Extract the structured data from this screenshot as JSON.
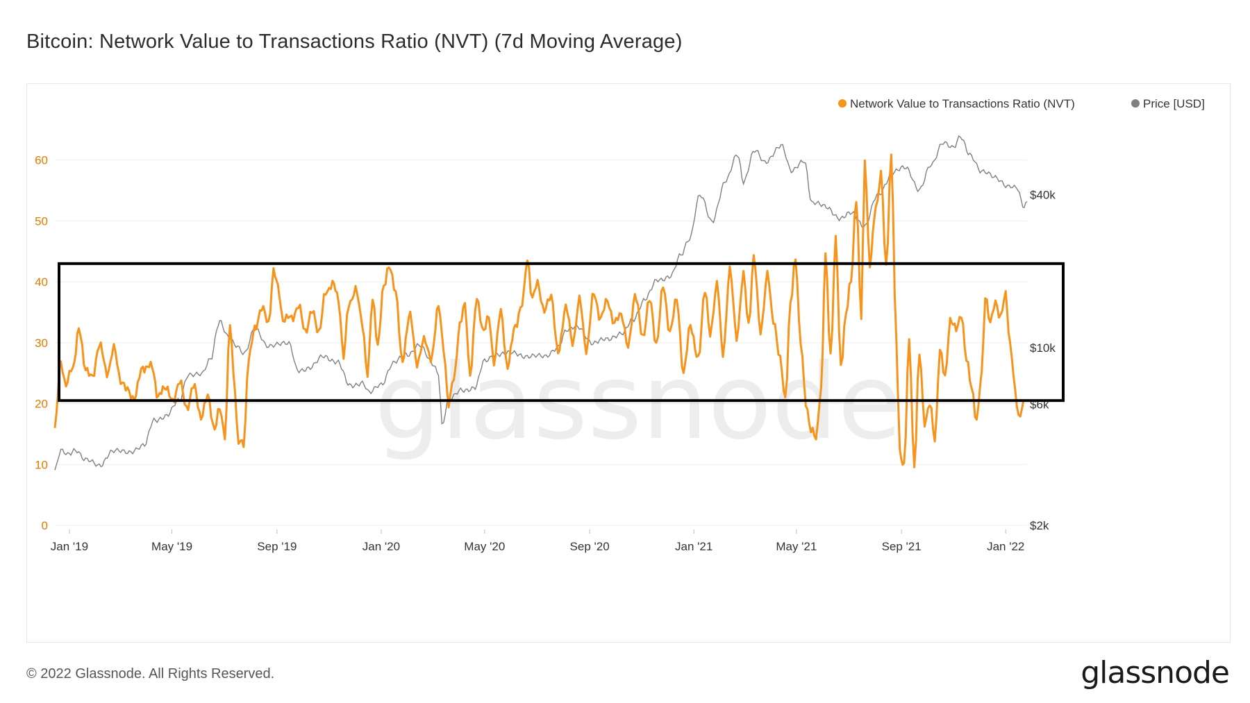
{
  "title": "Bitcoin: Network Value to Transactions Ratio (NVT) (7d Moving Average)",
  "footer": "© 2022 Glassnode. All Rights Reserved.",
  "brand": "glassnode",
  "watermark": "glassnode",
  "colors": {
    "nvt": "#f7931a",
    "price": "#7f7f7f",
    "left_axis": "#e07b00",
    "box": "#000000",
    "grid": "#eeeeee"
  },
  "chart_data": {
    "type": "line",
    "title": "Bitcoin: Network Value to Transactions Ratio (NVT) (7d Moving Average)",
    "x_tick_labels": [
      "Jan '19",
      "May '19",
      "Sep '19",
      "Jan '20",
      "May '20",
      "Sep '20",
      "Jan '21",
      "May '21",
      "Sep '21",
      "Jan '22"
    ],
    "x_range": [
      "2018-12-15",
      "2022-01-26"
    ],
    "y_left": {
      "ticks": [
        0,
        10,
        20,
        30,
        40,
        50,
        60
      ],
      "ylim": [
        0,
        70
      ]
    },
    "y_right": {
      "scale": "log",
      "tick_labels": [
        "$2k",
        "$6k",
        "$10k",
        "$40k"
      ],
      "tick_values": [
        2000,
        6000,
        10000,
        40000
      ]
    },
    "legend": {
      "placement": "top-right",
      "entries": [
        "Network Value to Transactions Ratio (NVT)",
        "Price [USD]"
      ]
    },
    "annotation": {
      "type": "rectangle",
      "y_range_left_axis": [
        20.5,
        43
      ]
    },
    "grid": true,
    "series": [
      {
        "name": "Network Value to Transactions Ratio (NVT)",
        "axis": "left",
        "points": [
          [
            "2018-12-15",
            16
          ],
          [
            "2018-12-22",
            27
          ],
          [
            "2018-12-28",
            23
          ],
          [
            "2019-01-05",
            26
          ],
          [
            "2019-01-12",
            32
          ],
          [
            "2019-01-20",
            26
          ],
          [
            "2019-01-28",
            24
          ],
          [
            "2019-02-05",
            30
          ],
          [
            "2019-02-14",
            25
          ],
          [
            "2019-02-22",
            29
          ],
          [
            "2019-03-02",
            24
          ],
          [
            "2019-03-10",
            22
          ],
          [
            "2019-03-18",
            21
          ],
          [
            "2019-03-28",
            26
          ],
          [
            "2019-04-08",
            26
          ],
          [
            "2019-04-15",
            21
          ],
          [
            "2019-04-24",
            23
          ],
          [
            "2019-05-02",
            20
          ],
          [
            "2019-05-10",
            24
          ],
          [
            "2019-05-18",
            19
          ],
          [
            "2019-05-26",
            23
          ],
          [
            "2019-06-04",
            18
          ],
          [
            "2019-06-12",
            21
          ],
          [
            "2019-06-20",
            16
          ],
          [
            "2019-06-26",
            19
          ],
          [
            "2019-07-02",
            15
          ],
          [
            "2019-07-08",
            33
          ],
          [
            "2019-07-12",
            25
          ],
          [
            "2019-07-18",
            14
          ],
          [
            "2019-07-24",
            13
          ],
          [
            "2019-07-30",
            28
          ],
          [
            "2019-08-06",
            32
          ],
          [
            "2019-08-14",
            36
          ],
          [
            "2019-08-22",
            33
          ],
          [
            "2019-08-28",
            42
          ],
          [
            "2019-09-02",
            39
          ],
          [
            "2019-09-08",
            34
          ],
          [
            "2019-09-18",
            34
          ],
          [
            "2019-09-26",
            36
          ],
          [
            "2019-10-04",
            32
          ],
          [
            "2019-10-12",
            35
          ],
          [
            "2019-10-20",
            32
          ],
          [
            "2019-10-28",
            38
          ],
          [
            "2019-11-05",
            40
          ],
          [
            "2019-11-12",
            37
          ],
          [
            "2019-11-18",
            28
          ],
          [
            "2019-11-24",
            36
          ],
          [
            "2019-12-02",
            39
          ],
          [
            "2019-12-10",
            33
          ],
          [
            "2019-12-16",
            25
          ],
          [
            "2019-12-22",
            37
          ],
          [
            "2019-12-28",
            30
          ],
          [
            "2020-01-04",
            39
          ],
          [
            "2020-01-10",
            43
          ],
          [
            "2020-01-18",
            38
          ],
          [
            "2020-01-26",
            27
          ],
          [
            "2020-02-04",
            35
          ],
          [
            "2020-02-12",
            26
          ],
          [
            "2020-02-20",
            31
          ],
          [
            "2020-02-28",
            27
          ],
          [
            "2020-03-08",
            36
          ],
          [
            "2020-03-14",
            29
          ],
          [
            "2020-03-20",
            20
          ],
          [
            "2020-03-26",
            24
          ],
          [
            "2020-04-02",
            33
          ],
          [
            "2020-04-08",
            36
          ],
          [
            "2020-04-14",
            25
          ],
          [
            "2020-04-22",
            37
          ],
          [
            "2020-04-30",
            32
          ],
          [
            "2020-05-06",
            34
          ],
          [
            "2020-05-12",
            27
          ],
          [
            "2020-05-20",
            35
          ],
          [
            "2020-05-28",
            26
          ],
          [
            "2020-06-06",
            33
          ],
          [
            "2020-06-14",
            36
          ],
          [
            "2020-06-20",
            44
          ],
          [
            "2020-06-26",
            37
          ],
          [
            "2020-07-02",
            40
          ],
          [
            "2020-07-10",
            35
          ],
          [
            "2020-07-18",
            38
          ],
          [
            "2020-07-26",
            28
          ],
          [
            "2020-08-04",
            36
          ],
          [
            "2020-08-12",
            30
          ],
          [
            "2020-08-20",
            37
          ],
          [
            "2020-08-28",
            29
          ],
          [
            "2020-09-06",
            38
          ],
          [
            "2020-09-14",
            34
          ],
          [
            "2020-09-22",
            37
          ],
          [
            "2020-09-30",
            33
          ],
          [
            "2020-10-08",
            35
          ],
          [
            "2020-10-16",
            29
          ],
          [
            "2020-10-24",
            38
          ],
          [
            "2020-11-02",
            31
          ],
          [
            "2020-11-10",
            37
          ],
          [
            "2020-11-18",
            30
          ],
          [
            "2020-11-26",
            39
          ],
          [
            "2020-12-04",
            32
          ],
          [
            "2020-12-12",
            37
          ],
          [
            "2020-12-20",
            25
          ],
          [
            "2020-12-28",
            33
          ],
          [
            "2021-01-06",
            27
          ],
          [
            "2021-01-14",
            39
          ],
          [
            "2021-01-20",
            31
          ],
          [
            "2021-01-28",
            40
          ],
          [
            "2021-02-04",
            28
          ],
          [
            "2021-02-12",
            42
          ],
          [
            "2021-02-20",
            31
          ],
          [
            "2021-02-28",
            41
          ],
          [
            "2021-03-06",
            33
          ],
          [
            "2021-03-12",
            44
          ],
          [
            "2021-03-20",
            32
          ],
          [
            "2021-03-28",
            41
          ],
          [
            "2021-04-04",
            34
          ],
          [
            "2021-04-12",
            27
          ],
          [
            "2021-04-18",
            21
          ],
          [
            "2021-04-24",
            36
          ],
          [
            "2021-04-30",
            44
          ],
          [
            "2021-05-06",
            30
          ],
          [
            "2021-05-12",
            20
          ],
          [
            "2021-05-18",
            16
          ],
          [
            "2021-05-24",
            14
          ],
          [
            "2021-05-30",
            23
          ],
          [
            "2021-06-04",
            44
          ],
          [
            "2021-06-10",
            28
          ],
          [
            "2021-06-16",
            47
          ],
          [
            "2021-06-22",
            26
          ],
          [
            "2021-06-28",
            35
          ],
          [
            "2021-07-04",
            40
          ],
          [
            "2021-07-10",
            54
          ],
          [
            "2021-07-16",
            34
          ],
          [
            "2021-07-20",
            60
          ],
          [
            "2021-07-26",
            43
          ],
          [
            "2021-08-02",
            52
          ],
          [
            "2021-08-08",
            58
          ],
          [
            "2021-08-14",
            42
          ],
          [
            "2021-08-20",
            61
          ],
          [
            "2021-08-26",
            30
          ],
          [
            "2021-08-30",
            12
          ],
          [
            "2021-09-04",
            10
          ],
          [
            "2021-09-10",
            30
          ],
          [
            "2021-09-16",
            10
          ],
          [
            "2021-09-22",
            28
          ],
          [
            "2021-09-28",
            17
          ],
          [
            "2021-10-04",
            20
          ],
          [
            "2021-10-10",
            14
          ],
          [
            "2021-10-16",
            29
          ],
          [
            "2021-10-22",
            24
          ],
          [
            "2021-10-28",
            34
          ],
          [
            "2021-11-04",
            32
          ],
          [
            "2021-11-10",
            35
          ],
          [
            "2021-11-16",
            27
          ],
          [
            "2021-11-22",
            23
          ],
          [
            "2021-11-28",
            17
          ],
          [
            "2021-12-04",
            25
          ],
          [
            "2021-12-08",
            38
          ],
          [
            "2021-12-14",
            33
          ],
          [
            "2021-12-20",
            37
          ],
          [
            "2021-12-26",
            34
          ],
          [
            "2022-01-01",
            38
          ],
          [
            "2022-01-06",
            30
          ],
          [
            "2022-01-12",
            22
          ],
          [
            "2022-01-16",
            18
          ],
          [
            "2022-01-22",
            20
          ]
        ]
      },
      {
        "name": "Price [USD]",
        "axis": "right",
        "points": [
          [
            "2018-12-15",
            3300
          ],
          [
            "2018-12-22",
            3900
          ],
          [
            "2018-12-30",
            3800
          ],
          [
            "2019-01-08",
            4000
          ],
          [
            "2019-01-20",
            3600
          ],
          [
            "2019-02-05",
            3450
          ],
          [
            "2019-02-20",
            3900
          ],
          [
            "2019-03-10",
            3900
          ],
          [
            "2019-03-30",
            4100
          ],
          [
            "2019-04-10",
            5200
          ],
          [
            "2019-04-25",
            5400
          ],
          [
            "2019-05-10",
            6200
          ],
          [
            "2019-05-20",
            7900
          ],
          [
            "2019-06-05",
            7800
          ],
          [
            "2019-06-15",
            9000
          ],
          [
            "2019-06-26",
            12800
          ],
          [
            "2019-07-05",
            11000
          ],
          [
            "2019-07-15",
            10200
          ],
          [
            "2019-07-25",
            9600
          ],
          [
            "2019-08-06",
            11800
          ],
          [
            "2019-08-20",
            10200
          ],
          [
            "2019-09-01",
            10400
          ],
          [
            "2019-09-15",
            10300
          ],
          [
            "2019-09-25",
            8200
          ],
          [
            "2019-10-10",
            8300
          ],
          [
            "2019-10-26",
            9300
          ],
          [
            "2019-11-10",
            8800
          ],
          [
            "2019-11-25",
            7100
          ],
          [
            "2019-12-10",
            7300
          ],
          [
            "2019-12-18",
            6600
          ],
          [
            "2020-01-01",
            7200
          ],
          [
            "2020-01-15",
            8700
          ],
          [
            "2020-02-01",
            9400
          ],
          [
            "2020-02-14",
            10300
          ],
          [
            "2020-03-01",
            8600
          ],
          [
            "2020-03-08",
            8000
          ],
          [
            "2020-03-12",
            5000
          ],
          [
            "2020-03-20",
            6200
          ],
          [
            "2020-04-05",
            6800
          ],
          [
            "2020-04-20",
            7000
          ],
          [
            "2020-05-01",
            8800
          ],
          [
            "2020-05-15",
            9500
          ],
          [
            "2020-06-01",
            9500
          ],
          [
            "2020-06-20",
            9300
          ],
          [
            "2020-07-10",
            9200
          ],
          [
            "2020-07-26",
            10100
          ],
          [
            "2020-08-05",
            11600
          ],
          [
            "2020-08-18",
            12200
          ],
          [
            "2020-09-05",
            10300
          ],
          [
            "2020-09-20",
            10900
          ],
          [
            "2020-10-10",
            11300
          ],
          [
            "2020-10-21",
            12900
          ],
          [
            "2020-11-05",
            15500
          ],
          [
            "2020-11-20",
            18500
          ],
          [
            "2020-12-05",
            19200
          ],
          [
            "2020-12-17",
            23000
          ],
          [
            "2020-12-27",
            27000
          ],
          [
            "2021-01-08",
            40000
          ],
          [
            "2021-01-22",
            31000
          ],
          [
            "2021-02-08",
            46000
          ],
          [
            "2021-02-21",
            57000
          ],
          [
            "2021-02-28",
            45000
          ],
          [
            "2021-03-13",
            60000
          ],
          [
            "2021-03-25",
            53000
          ],
          [
            "2021-04-13",
            63000
          ],
          [
            "2021-04-25",
            49000
          ],
          [
            "2021-05-10",
            55000
          ],
          [
            "2021-05-19",
            37000
          ],
          [
            "2021-06-05",
            36000
          ],
          [
            "2021-06-22",
            32000
          ],
          [
            "2021-07-05",
            34000
          ],
          [
            "2021-07-20",
            30000
          ],
          [
            "2021-08-05",
            40000
          ],
          [
            "2021-08-22",
            49000
          ],
          [
            "2021-09-06",
            51000
          ],
          [
            "2021-09-22",
            42000
          ],
          [
            "2021-10-06",
            52000
          ],
          [
            "2021-10-20",
            65000
          ],
          [
            "2021-11-01",
            61000
          ],
          [
            "2021-11-09",
            67000
          ],
          [
            "2021-11-20",
            58000
          ],
          [
            "2021-12-04",
            49000
          ],
          [
            "2021-12-20",
            47000
          ],
          [
            "2022-01-05",
            43000
          ],
          [
            "2022-01-15",
            42000
          ],
          [
            "2022-01-21",
            36000
          ],
          [
            "2022-01-26",
            37500
          ]
        ]
      }
    ]
  }
}
